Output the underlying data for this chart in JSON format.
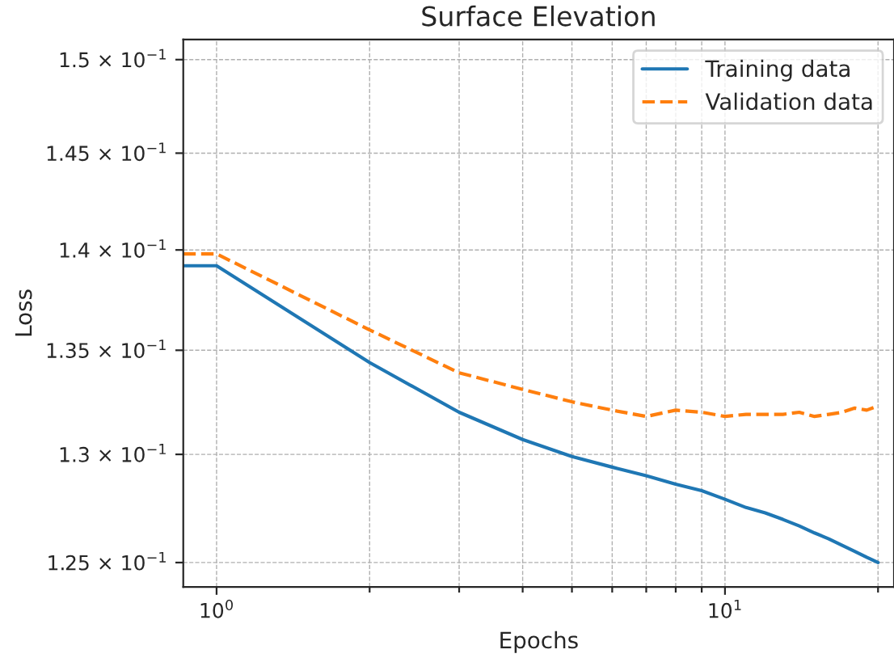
{
  "chart_data": {
    "type": "line",
    "title": "Surface Elevation",
    "xlabel": "Epochs",
    "ylabel": "Loss",
    "log": "xy",
    "x": [
      0.86,
      1,
      2,
      3,
      4,
      5,
      6,
      7,
      8,
      9,
      10,
      11,
      12,
      13,
      14,
      15,
      16,
      17,
      18,
      19,
      20
    ],
    "series": [
      {
        "name": "Training data",
        "color": "#1f77b4",
        "line_style": "solid",
        "values": [
          0.1392,
          0.1392,
          0.1344,
          0.132,
          0.1307,
          0.1299,
          0.1294,
          0.129,
          0.1286,
          0.1283,
          0.1279,
          0.12752,
          0.12727,
          0.12697,
          0.12667,
          0.12635,
          0.12608,
          0.12578,
          0.12551,
          0.12524,
          0.125
        ]
      },
      {
        "name": "Validation data",
        "color": "#ff7f0e",
        "line_style": "dashed",
        "values": [
          0.1398,
          0.1398,
          0.136,
          0.1339,
          0.1331,
          0.1325,
          0.1321,
          0.1318,
          0.1321,
          0.132,
          0.1318,
          0.1319,
          0.1319,
          0.1319,
          0.132,
          0.1318,
          0.1319,
          0.132,
          0.1322,
          0.1321,
          0.1323
        ]
      }
    ],
    "xlim": [
      0.86,
      21.5
    ],
    "ylim": [
      0.1239,
      0.1511
    ],
    "xticks": [
      {
        "value": 1,
        "label": "10$^{0}$"
      },
      {
        "value": 2,
        "label": null
      },
      {
        "value": 3,
        "label": null
      },
      {
        "value": 4,
        "label": null
      },
      {
        "value": 5,
        "label": null
      },
      {
        "value": 6,
        "label": null
      },
      {
        "value": 7,
        "label": null
      },
      {
        "value": 8,
        "label": null
      },
      {
        "value": 9,
        "label": null
      },
      {
        "value": 10,
        "label": "10$^{1}$"
      },
      {
        "value": 20,
        "label": null
      }
    ],
    "yticks": [
      {
        "value": 0.125,
        "label": "1.25 × 10$^{−1}$"
      },
      {
        "value": 0.13,
        "label": "1.3 × 10$^{−1}$"
      },
      {
        "value": 0.135,
        "label": "1.35 × 10$^{−1}$"
      },
      {
        "value": 0.14,
        "label": "1.4 × 10$^{−1}$"
      },
      {
        "value": 0.145,
        "label": "1.45 × 10$^{−1}$"
      },
      {
        "value": 0.15,
        "label": "1.5 × 10$^{−1}$"
      }
    ],
    "grid": true,
    "legend": "top right"
  }
}
